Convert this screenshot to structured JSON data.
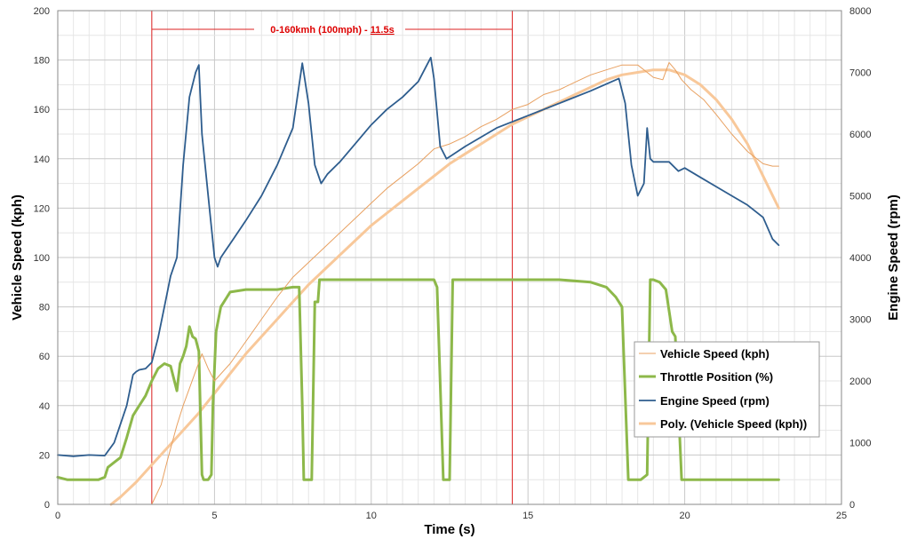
{
  "chart_data": {
    "type": "line",
    "title": "",
    "xlabel": "Time (s)",
    "ylabel": "Vehicle Speed (kph)",
    "y2label": "Engine Speed (rpm)",
    "xlim": [
      0,
      25
    ],
    "ylim": [
      0,
      200
    ],
    "y2lim": [
      0,
      8000
    ],
    "xticks": [
      0,
      5,
      10,
      15,
      20,
      25
    ],
    "yticks": [
      0,
      20,
      40,
      60,
      80,
      100,
      120,
      140,
      160,
      180,
      200
    ],
    "y2ticks": [
      0,
      1000,
      2000,
      3000,
      4000,
      5000,
      6000,
      7000,
      8000
    ],
    "grid": true,
    "legend_position": "bottom-right",
    "annotation": {
      "text": "0-160kmh (100mph) - ",
      "value": "11.5s",
      "x_start": 3.0,
      "x_end": 14.5
    },
    "series": [
      {
        "name": "Vehicle Speed (kph)",
        "color": "#e8a060",
        "axis": "left",
        "width": 1,
        "x": [
          3.0,
          3.3,
          3.5,
          3.8,
          4.0,
          4.2,
          4.4,
          4.6,
          4.8,
          5.0,
          5.5,
          6.0,
          6.5,
          7.0,
          7.5,
          8.0,
          8.5,
          9.0,
          9.5,
          10.0,
          10.5,
          11.0,
          11.5,
          12.0,
          12.5,
          13.0,
          13.5,
          14.0,
          14.5,
          15.0,
          15.5,
          16.0,
          16.5,
          17.0,
          17.5,
          18.0,
          18.5,
          18.8,
          19.0,
          19.3,
          19.5,
          19.7,
          19.9,
          20.2,
          20.6,
          21.0,
          21.5,
          22.0,
          22.5,
          22.8,
          23.0
        ],
        "y": [
          0,
          8,
          18,
          32,
          40,
          47,
          54,
          61,
          55,
          50,
          57,
          66,
          75,
          84,
          92,
          98,
          104,
          110,
          116,
          122,
          128,
          133,
          138,
          144,
          146,
          149,
          153,
          156,
          160,
          162,
          166,
          168,
          171,
          174,
          176,
          178,
          178,
          175,
          173,
          172,
          179,
          176,
          172,
          168,
          164,
          158,
          150,
          143,
          138,
          137,
          137
        ]
      },
      {
        "name": "Throttle Position (%)",
        "color": "#8db84a",
        "axis": "left",
        "width": 3,
        "x": [
          0,
          0.3,
          0.6,
          1.0,
          1.3,
          1.5,
          1.6,
          1.8,
          2.0,
          2.2,
          2.4,
          2.6,
          2.8,
          3.0,
          3.2,
          3.4,
          3.6,
          3.8,
          3.9,
          4.0,
          4.1,
          4.2,
          4.3,
          4.4,
          4.5,
          4.6,
          4.65,
          4.7,
          4.8,
          4.9,
          4.95,
          5.05,
          5.2,
          5.5,
          6.0,
          7.0,
          7.5,
          7.7,
          7.8,
          7.85,
          8.0,
          8.1,
          8.2,
          8.3,
          8.35,
          9.0,
          10.0,
          11.0,
          12.0,
          12.1,
          12.3,
          12.5,
          12.6,
          13.0,
          14.0,
          15.0,
          16.0,
          17.0,
          17.5,
          17.8,
          18.0,
          18.2,
          18.3,
          18.6,
          18.8,
          18.9,
          19.0,
          19.2,
          19.4,
          19.6,
          19.7,
          19.9,
          20.0,
          21.0,
          22.0,
          23.0
        ],
        "y": [
          11,
          10,
          10,
          10,
          10,
          11,
          15,
          17,
          19,
          27,
          36,
          40,
          44,
          50,
          55,
          57,
          56,
          46,
          57,
          60,
          64,
          72,
          68,
          67,
          62,
          12,
          10,
          10,
          10,
          12,
          40,
          70,
          80,
          86,
          87,
          87,
          88,
          88,
          40,
          10,
          10,
          10,
          82,
          82,
          91,
          91,
          91,
          91,
          91,
          88,
          10,
          10,
          91,
          91,
          91,
          91,
          91,
          90,
          88,
          84,
          80,
          10,
          10,
          10,
          12,
          91,
          91,
          90,
          87,
          70,
          68,
          10,
          10,
          10,
          10,
          10
        ]
      },
      {
        "name": "Engine Speed (rpm)",
        "color": "#2e5d8e",
        "axis": "right",
        "width": 1.8,
        "x": [
          0,
          0.5,
          1.0,
          1.5,
          1.8,
          2.0,
          2.2,
          2.4,
          2.5,
          2.6,
          2.8,
          3.0,
          3.2,
          3.4,
          3.6,
          3.8,
          4.0,
          4.2,
          4.4,
          4.5,
          4.6,
          4.8,
          5.0,
          5.1,
          5.2,
          5.6,
          6.0,
          6.5,
          7.0,
          7.5,
          7.8,
          8.0,
          8.2,
          8.4,
          8.6,
          9.0,
          9.5,
          10.0,
          10.5,
          11.0,
          11.5,
          11.9,
          12.0,
          12.2,
          12.4,
          13.0,
          14.0,
          15.0,
          16.0,
          17.0,
          17.9,
          18.1,
          18.3,
          18.5,
          18.7,
          18.8,
          18.9,
          19.0,
          19.5,
          19.8,
          20.0,
          20.5,
          21.0,
          21.5,
          22.0,
          22.5,
          22.8,
          23.0
        ],
        "y": [
          800,
          780,
          800,
          790,
          1000,
          1300,
          1600,
          2100,
          2150,
          2180,
          2200,
          2300,
          2700,
          3200,
          3700,
          4000,
          5500,
          6600,
          7000,
          7120,
          6000,
          5000,
          4000,
          3850,
          4000,
          4300,
          4600,
          5000,
          5500,
          6100,
          7150,
          6500,
          5500,
          5200,
          5350,
          5550,
          5850,
          6150,
          6400,
          6600,
          6850,
          7240,
          6900,
          5800,
          5600,
          5800,
          6100,
          6300,
          6500,
          6700,
          6900,
          6500,
          5500,
          5000,
          5200,
          6100,
          5600,
          5550,
          5550,
          5400,
          5450,
          5300,
          5150,
          5000,
          4850,
          4650,
          4300,
          4200
        ]
      },
      {
        "name": "Poly. (Vehicle Speed (kph))",
        "color": "#f8c89a",
        "axis": "left",
        "width": 3,
        "x": [
          1.7,
          2.0,
          2.5,
          3.0,
          3.5,
          4.0,
          4.5,
          5.0,
          5.5,
          6.0,
          6.5,
          7.0,
          7.5,
          8.0,
          8.5,
          9.0,
          9.5,
          10.0,
          10.5,
          11.0,
          11.5,
          12.0,
          12.5,
          13.0,
          13.5,
          14.0,
          14.5,
          15.0,
          15.5,
          16.0,
          16.5,
          17.0,
          17.5,
          18.0,
          18.5,
          19.0,
          19.5,
          20.0,
          20.5,
          21.0,
          21.5,
          22.0,
          22.5,
          23.0
        ],
        "y": [
          0,
          3,
          9,
          16,
          23,
          30,
          37,
          45,
          53,
          61,
          68,
          75,
          82,
          89,
          95,
          101,
          107,
          113,
          118,
          123,
          128,
          133,
          138,
          142,
          146,
          150,
          154,
          157,
          160,
          163,
          166,
          169,
          172,
          174,
          175,
          176,
          176,
          174,
          170,
          164,
          156,
          146,
          133,
          120
        ]
      }
    ]
  }
}
